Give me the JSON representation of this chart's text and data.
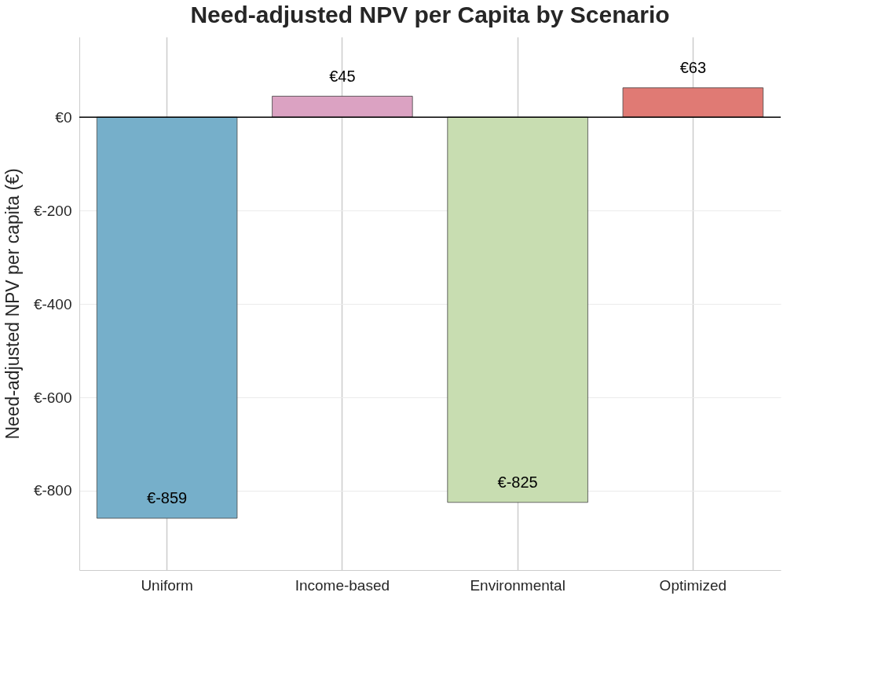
{
  "chart_data": {
    "type": "bar",
    "title": "Need-adjusted NPV per Capita by Scenario",
    "ylabel": "Need-adjusted NPV per capita (€)",
    "categories": [
      "Uniform",
      "Income-based",
      "Environmental",
      "Optimized"
    ],
    "values": [
      -859,
      45,
      -825,
      63
    ],
    "colors": [
      "#76afca",
      "#dba2c2",
      "#c8ddb1",
      "#e07a74"
    ],
    "value_labels": [
      "€-859",
      "€45",
      "€-825",
      "€63"
    ],
    "ylim": [
      -970,
      172
    ],
    "yticks": [
      {
        "value": 0,
        "label": "€0"
      },
      {
        "value": -200,
        "label": "€-200"
      },
      {
        "value": -400,
        "label": "€-400"
      },
      {
        "value": -600,
        "label": "€-600"
      },
      {
        "value": -800,
        "label": "€-800"
      }
    ],
    "ref_lines": [
      {
        "axis": "y",
        "value": 0,
        "label": null,
        "color": "#000000"
      }
    ],
    "grid": true
  }
}
